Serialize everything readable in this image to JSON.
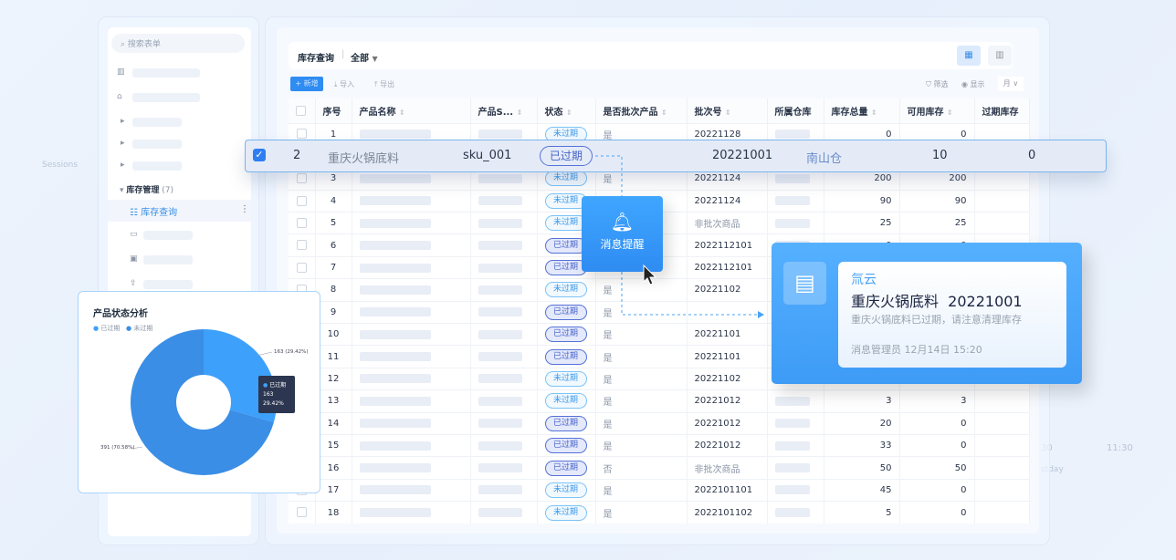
{
  "background": {
    "left_label": "Sessions",
    "right_time": "11:30",
    "right_time2": "30",
    "right_caption": "stday"
  },
  "sidebar": {
    "search_placeholder": "搜索表单",
    "group_label": "库存管理",
    "group_count": "(7)",
    "active_item": "库存查询"
  },
  "header": {
    "title": "库存查询",
    "filter": "全部",
    "view_table_icon": "table-icon",
    "view_chart_icon": "bar-chart-icon"
  },
  "toolbar": {
    "add": "新增",
    "import": "导入",
    "export": "导出",
    "filter": "筛选",
    "display": "显示",
    "period": "月"
  },
  "table": {
    "columns": [
      "",
      "序号",
      "产品名称",
      "产品S...",
      "状态",
      "是否批次产品",
      "批次号",
      "所属仓库",
      "库存总量",
      "可用库存",
      "过期库存"
    ],
    "rows": [
      {
        "no": "1",
        "status": "未过期",
        "batch_flag": "是",
        "batch": "20221128",
        "total": "0",
        "avail": "0"
      },
      {
        "no": "2",
        "status": "已过期",
        "batch_flag": "",
        "batch": "",
        "total": "",
        "avail": ""
      },
      {
        "no": "3",
        "status": "未过期",
        "batch_flag": "是",
        "batch": "20221124",
        "total": "200",
        "avail": "200"
      },
      {
        "no": "4",
        "status": "未过期",
        "batch_flag": "",
        "batch": "20221124",
        "total": "90",
        "avail": "90"
      },
      {
        "no": "5",
        "status": "未过期",
        "batch_flag": "",
        "batch": "非批次商品",
        "total": "25",
        "avail": "25"
      },
      {
        "no": "6",
        "status": "已过期",
        "batch_flag": "",
        "batch": "2022112101",
        "total": "0",
        "avail": "0"
      },
      {
        "no": "7",
        "status": "已过期",
        "batch_flag": "",
        "batch": "2022112101",
        "total": "",
        "avail": ""
      },
      {
        "no": "8",
        "status": "未过期",
        "batch_flag": "是",
        "batch": "20221102",
        "total": "",
        "avail": ""
      },
      {
        "no": "9",
        "status": "已过期",
        "batch_flag": "是",
        "batch": "",
        "total": "",
        "avail": ""
      },
      {
        "no": "10",
        "status": "已过期",
        "batch_flag": "是",
        "batch": "20221101",
        "total": "",
        "avail": ""
      },
      {
        "no": "11",
        "status": "已过期",
        "batch_flag": "是",
        "batch": "20221101",
        "total": "",
        "avail": ""
      },
      {
        "no": "12",
        "status": "未过期",
        "batch_flag": "是",
        "batch": "20221102",
        "total": "8",
        "avail": "8"
      },
      {
        "no": "13",
        "status": "未过期",
        "batch_flag": "是",
        "batch": "20221012",
        "total": "3",
        "avail": "3"
      },
      {
        "no": "14",
        "status": "已过期",
        "batch_flag": "是",
        "batch": "20221012",
        "total": "20",
        "avail": "0"
      },
      {
        "no": "15",
        "status": "已过期",
        "batch_flag": "是",
        "batch": "20221012",
        "total": "33",
        "avail": "0"
      },
      {
        "no": "16",
        "status": "已过期",
        "batch_flag": "否",
        "batch": "非批次商品",
        "total": "50",
        "avail": "50"
      },
      {
        "no": "17",
        "status": "未过期",
        "batch_flag": "是",
        "batch": "2022101101",
        "total": "45",
        "avail": "0"
      },
      {
        "no": "18",
        "status": "未过期",
        "batch_flag": "是",
        "batch": "2022101102",
        "total": "5",
        "avail": "0"
      }
    ]
  },
  "selected_row": {
    "checked": true,
    "no": "2",
    "name": "重庆火锅底料",
    "sku": "sku_001",
    "status": "已过期",
    "batch": "20221001",
    "warehouse": "南山仓",
    "total": "10",
    "avail": "0"
  },
  "bell_popup": {
    "label": "消息提醒",
    "icon": "bell-icon"
  },
  "notification": {
    "app": "氚云",
    "title": "重庆火锅底料  20221001",
    "body": "重庆火锅底料已过期，请注意清理库存",
    "footer": "消息管理员 12月14日 15:20",
    "icon": "building-icon"
  },
  "chart_data": {
    "type": "pie",
    "donut": true,
    "title": "产品状态分析",
    "legend": [
      "已过期",
      "未过期"
    ],
    "legend_position": "top-left",
    "series": [
      {
        "name": "已过期",
        "value": 163,
        "label": "163 (29.42%)",
        "color": "#3da0fb"
      },
      {
        "name": "未过期",
        "value": 391,
        "label": "391 (70.58%)",
        "color": "#3a8ee6"
      }
    ],
    "tooltip": {
      "name": "已过期",
      "value": "163",
      "percent": "29.42%"
    }
  }
}
